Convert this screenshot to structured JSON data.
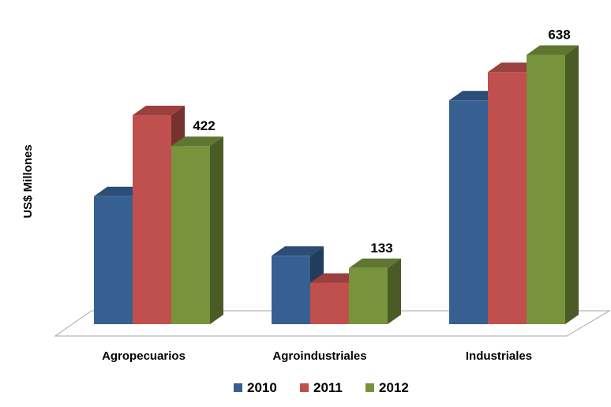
{
  "chart_data": {
    "type": "bar",
    "title": "",
    "xlabel": "",
    "ylabel": "US$ Millones",
    "categories": [
      "Agropecuarios",
      "Agroindustriales",
      "Industriales"
    ],
    "series": [
      {
        "name": "2010",
        "color": "#376092",
        "values": [
          303,
          162,
          530
        ]
      },
      {
        "name": "2011",
        "color": "#C0504D",
        "values": [
          495,
          98,
          597
        ]
      },
      {
        "name": "2012",
        "color": "#77933C",
        "values": [
          422,
          133,
          638
        ]
      }
    ],
    "data_labels": [
      {
        "category": "Agropecuarios",
        "series": "2012",
        "text": "422"
      },
      {
        "category": "Agroindustriales",
        "series": "2012",
        "text": "133"
      },
      {
        "category": "Industriales",
        "series": "2012",
        "text": "638"
      }
    ],
    "ylim": [
      0,
      680
    ],
    "grid": false,
    "legend_position": "bottom",
    "style": "3d-clustered-column"
  }
}
